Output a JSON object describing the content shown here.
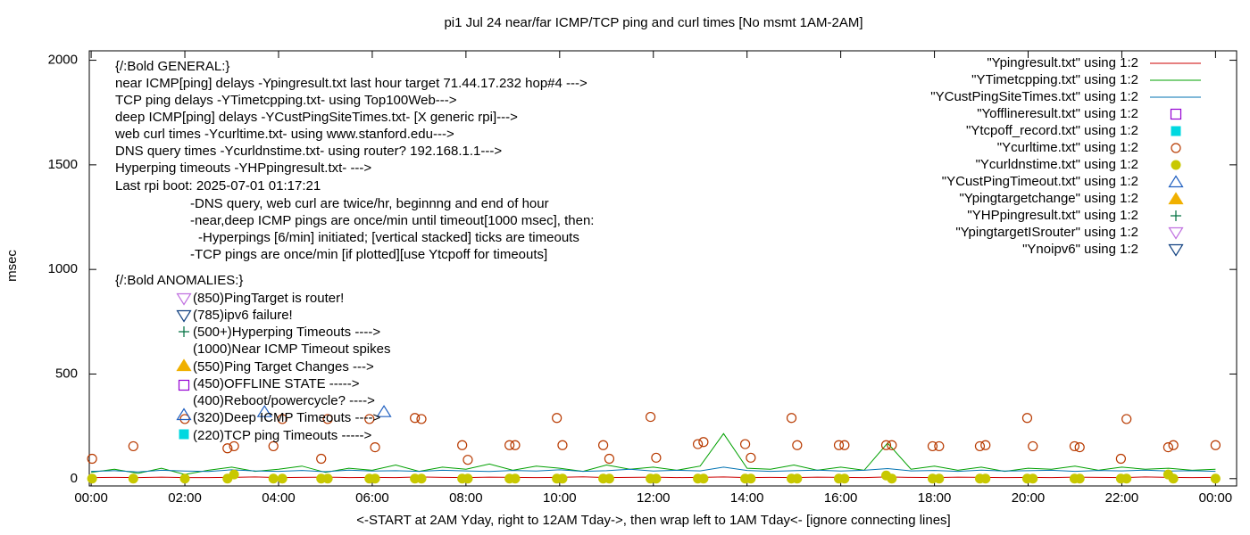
{
  "chart_data": {
    "type": "line",
    "title": "pi1 Jul 24  near/far ICMP/TCP ping and curl times [No msmt 1AM-2AM]",
    "xlabel": "<-START at 2AM Yday, right to 12AM Tday->, then wrap left to 1AM Tday<- [ignore connecting lines]",
    "ylabel": "msec",
    "xlim": [
      -0.04,
      24.45
    ],
    "ylim": [
      -35,
      2045
    ],
    "xticks": [
      {
        "value": 0,
        "label": "00:00"
      },
      {
        "value": 2,
        "label": "02:00"
      },
      {
        "value": 4,
        "label": "04:00"
      },
      {
        "value": 6,
        "label": "06:00"
      },
      {
        "value": 8,
        "label": "08:00"
      },
      {
        "value": 10,
        "label": "10:00"
      },
      {
        "value": 12,
        "label": "12:00"
      },
      {
        "value": 14,
        "label": "14:00"
      },
      {
        "value": 16,
        "label": "16:00"
      },
      {
        "value": 18,
        "label": "18:00"
      },
      {
        "value": 20,
        "label": "20:00"
      },
      {
        "value": 22,
        "label": "22:00"
      },
      {
        "value": 24,
        "label": "00:00"
      }
    ],
    "yticks": [
      0,
      500,
      1000,
      1500,
      2000
    ],
    "grid": false,
    "legend": "top-right",
    "annotations": [
      "{/:Bold GENERAL:}",
      "near ICMP[ping] delays -Ypingresult.txt last hour target 71.44.17.232 hop#4 --->",
      "TCP ping delays -YTimetcpping.txt- using Top100Web--->",
      "deep ICMP[ping] delays -YCustPingSiteTimes.txt- [X generic rpi]--->",
      "web curl times -Ycurltime.txt- using www.stanford.edu--->",
      "DNS query times -Ycurldnstime.txt- using router? 192.168.1.1--->",
      "Hyperping timeouts -YHPpingresult.txt- --->",
      "Last rpi boot: 2025-07-01 01:17:21",
      "-DNS query, web curl are twice/hr, beginnng and end of hour",
      "-near,deep ICMP pings are once/min until timeout[1000 msec], then:",
      "-Hyperpings [6/min] initiated; [vertical stacked] ticks are timeouts",
      "-TCP pings are once/min [if plotted][use Ytcpoff for timeouts]",
      "{/:Bold ANOMALIES:}",
      "(850)PingTarget is router!",
      "(785)ipv6 failure!",
      "(500+)Hyperping Timeouts ---->",
      "(1000)Near ICMP Timeout spikes",
      "(550)Ping Target Changes --->",
      "(450)OFFLINE STATE ----->",
      "(400)Reboot/powercycle? ---->",
      "(320)Deep ICMP Timeouts ---->",
      "(220)TCP ping Timeouts ----->"
    ],
    "series": [
      {
        "name": "\"Ypingresult.txt\" using 1:2",
        "color": "#cc0000",
        "style": "line",
        "x": [
          0,
          0.5,
          1,
          1.5,
          2,
          2.5,
          3,
          3.5,
          4,
          4.5,
          5,
          5.5,
          6,
          6.5,
          7,
          7.5,
          8,
          8.5,
          9,
          9.5,
          10,
          10.5,
          11,
          11.5,
          12,
          12.5,
          13,
          13.5,
          14,
          14.5,
          15,
          15.5,
          16,
          16.5,
          17,
          17.5,
          18,
          18.5,
          19,
          19.5,
          20,
          20.5,
          21,
          21.5,
          22,
          22.5,
          23,
          23.5,
          24
        ],
        "values": [
          5,
          6,
          5,
          7,
          5,
          5,
          6,
          8,
          5,
          6,
          7,
          5,
          6,
          5,
          8,
          6,
          5,
          7,
          6,
          5,
          6,
          9,
          5,
          6,
          7,
          5,
          6,
          8,
          5,
          6,
          5,
          7,
          6,
          5,
          8,
          6,
          5,
          7,
          6,
          5,
          6,
          5,
          7,
          6,
          5,
          8,
          6,
          5,
          6
        ]
      },
      {
        "name": "\"YTimetcpping.txt\" using 1:2",
        "color": "#00a000",
        "style": "line",
        "x": [
          0,
          0.5,
          1,
          1.5,
          2,
          2.5,
          3,
          3.5,
          4,
          4.5,
          5,
          5.5,
          6,
          6.5,
          7,
          7.5,
          8,
          8.5,
          9,
          9.5,
          10,
          10.5,
          11,
          11.5,
          12,
          12.5,
          13,
          13.5,
          14,
          14.5,
          15,
          15.5,
          16,
          16.5,
          17,
          17.5,
          18,
          18.5,
          19,
          19.5,
          20,
          20.5,
          21,
          21.5,
          22,
          22.5,
          23,
          23.5,
          24
        ],
        "values": [
          30,
          45,
          25,
          50,
          20,
          40,
          55,
          35,
          45,
          60,
          30,
          50,
          40,
          65,
          35,
          55,
          45,
          70,
          40,
          60,
          50,
          35,
          65,
          45,
          55,
          40,
          60,
          215,
          50,
          45,
          65,
          40,
          55,
          40,
          170,
          45,
          60,
          40,
          55,
          35,
          50,
          45,
          60,
          40,
          55,
          45,
          50,
          40,
          45
        ]
      },
      {
        "name": "\"YCustPingSiteTimes.txt\" using 1:2",
        "color": "#0072b2",
        "style": "line",
        "x": [
          0,
          0.5,
          1,
          1.5,
          2,
          2.5,
          3,
          3.5,
          4,
          4.5,
          5,
          5.5,
          6,
          6.5,
          7,
          7.5,
          8,
          8.5,
          9,
          9.5,
          10,
          10.5,
          11,
          11.5,
          12,
          12.5,
          13,
          13.5,
          14,
          14.5,
          15,
          15.5,
          16,
          16.5,
          17,
          17.5,
          18,
          18.5,
          19,
          19.5,
          20,
          20.5,
          21,
          21.5,
          22,
          22.5,
          23,
          23.5,
          24
        ],
        "values": [
          35,
          38,
          32,
          40,
          36,
          34,
          42,
          37,
          35,
          39,
          33,
          41,
          36,
          38,
          35,
          40,
          37,
          34,
          39,
          36,
          42,
          35,
          38,
          45,
          36,
          40,
          37,
          55,
          39,
          35,
          38,
          41,
          36,
          40,
          48,
          37,
          39,
          35,
          41,
          36,
          38,
          40,
          35,
          39,
          37,
          41,
          36,
          38,
          35
        ]
      },
      {
        "name": "\"Yofflineresult.txt\" using 1:2",
        "color": "#9400d3",
        "style": "square-open",
        "x": [],
        "values": []
      },
      {
        "name": "\"Ytcpoff_record.txt\" using 1:2",
        "color": "#00d8e0",
        "style": "square-filled",
        "x": [],
        "values": []
      },
      {
        "name": "\"Ycurltime.txt\" using 1:2",
        "color": "#b83a00",
        "style": "circle-open",
        "x": [
          0.02,
          0.9,
          2.0,
          2.91,
          3.05,
          3.89,
          4.08,
          4.91,
          5.05,
          5.94,
          6.06,
          6.91,
          7.05,
          7.92,
          8.04,
          8.93,
          9.05,
          9.94,
          10.06,
          10.93,
          11.06,
          11.94,
          12.06,
          12.95,
          13.07,
          13.96,
          14.08,
          14.95,
          15.07,
          15.96,
          16.08,
          16.97,
          17.09,
          17.96,
          18.1,
          18.97,
          19.09,
          19.98,
          20.1,
          20.99,
          21.1,
          21.98,
          22.1,
          22.99,
          23.1,
          24.0
        ],
        "values": [
          95,
          155,
          285,
          145,
          155,
          155,
          285,
          95,
          285,
          285,
          150,
          290,
          285,
          160,
          90,
          160,
          160,
          290,
          160,
          160,
          95,
          295,
          100,
          165,
          175,
          165,
          100,
          290,
          160,
          160,
          160,
          160,
          160,
          155,
          155,
          155,
          160,
          290,
          155,
          155,
          150,
          95,
          285,
          150,
          160,
          160
        ]
      },
      {
        "name": "\"Ycurldnstime.txt\" using 1:2",
        "color": "#c8c800",
        "style": "circle-filled",
        "x": [
          0.02,
          0.9,
          2.0,
          2.91,
          3.05,
          3.89,
          4.08,
          4.91,
          5.05,
          5.94,
          6.06,
          6.91,
          7.05,
          7.92,
          8.04,
          8.93,
          9.05,
          9.94,
          10.06,
          10.93,
          11.06,
          11.94,
          12.06,
          12.95,
          13.07,
          13.96,
          14.08,
          14.95,
          15.07,
          15.96,
          16.08,
          16.97,
          17.09,
          17.96,
          18.1,
          18.97,
          19.09,
          19.98,
          20.1,
          20.99,
          21.1,
          21.98,
          22.1,
          22.99,
          23.1,
          24.0
        ],
        "values": [
          0,
          0,
          0,
          0,
          20,
          0,
          0,
          0,
          0,
          0,
          0,
          0,
          0,
          0,
          0,
          0,
          0,
          0,
          0,
          0,
          0,
          0,
          0,
          0,
          0,
          0,
          0,
          0,
          0,
          0,
          0,
          15,
          0,
          0,
          0,
          0,
          0,
          0,
          0,
          0,
          0,
          0,
          0,
          20,
          0,
          0
        ]
      },
      {
        "name": "\"YCustPingTimeout.txt\" using 1:2",
        "color": "#2060c0",
        "style": "triangle-open",
        "x": [
          3.7,
          6.25
        ],
        "values": [
          320,
          320
        ]
      },
      {
        "name": "\"Ypingtargetchange\" using 1:2",
        "color": "#f0b000",
        "style": "triangle-filled",
        "x": [],
        "values": []
      },
      {
        "name": "\"YHPpingresult.txt\" using 1:2",
        "color": "#007040",
        "style": "plus",
        "x": [],
        "values": []
      },
      {
        "name": "\"YpingtargetISrouter\" using 1:2",
        "color": "#c070e0",
        "style": "triangle-down-open",
        "x": [],
        "values": []
      },
      {
        "name": "\"Ynoipv6\" using 1:2",
        "color": "#104080",
        "style": "triangle-down-open",
        "x": [],
        "values": []
      }
    ]
  }
}
